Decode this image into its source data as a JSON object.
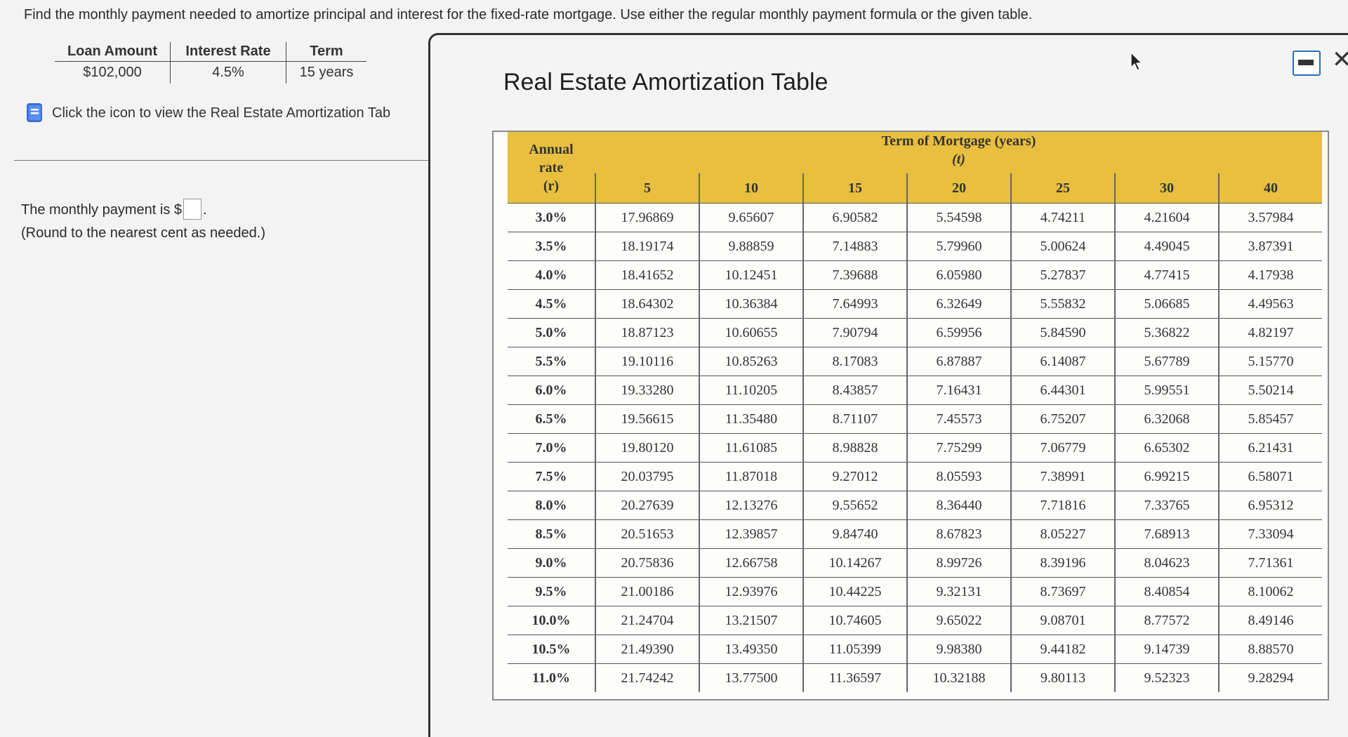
{
  "question": "Find the monthly payment needed to amortize principal and interest for the fixed-rate mortgage. Use either the regular monthly payment formula or the given table.",
  "given": {
    "headers": [
      "Loan Amount",
      "Interest Rate",
      "Term"
    ],
    "values": [
      "$102,000",
      "4.5%",
      "15 years"
    ]
  },
  "icon_link_text": "Click the icon to view the Real Estate Amortization Tab",
  "answer": {
    "prefix": "The monthly payment is $",
    "suffix": ".",
    "note": "(Round to the nearest cent as needed.)"
  },
  "popup": {
    "title": "Real Estate Amortization Table",
    "minimize_icon": "minimize-icon",
    "close_label": "✕"
  },
  "amortization": {
    "rate_header": [
      "Annual",
      "rate",
      "(r)"
    ],
    "term_header": "Term of Mortgage (years)",
    "term_symbol": "(t)",
    "terms": [
      "5",
      "10",
      "15",
      "20",
      "25",
      "30",
      "40"
    ],
    "rows": [
      {
        "rate": "3.0%",
        "values": [
          "17.96869",
          "9.65607",
          "6.90582",
          "5.54598",
          "4.74211",
          "4.21604",
          "3.57984"
        ]
      },
      {
        "rate": "3.5%",
        "values": [
          "18.19174",
          "9.88859",
          "7.14883",
          "5.79960",
          "5.00624",
          "4.49045",
          "3.87391"
        ]
      },
      {
        "rate": "4.0%",
        "values": [
          "18.41652",
          "10.12451",
          "7.39688",
          "6.05980",
          "5.27837",
          "4.77415",
          "4.17938"
        ]
      },
      {
        "rate": "4.5%",
        "values": [
          "18.64302",
          "10.36384",
          "7.64993",
          "6.32649",
          "5.55832",
          "5.06685",
          "4.49563"
        ]
      },
      {
        "rate": "5.0%",
        "values": [
          "18.87123",
          "10.60655",
          "7.90794",
          "6.59956",
          "5.84590",
          "5.36822",
          "4.82197"
        ]
      },
      {
        "rate": "5.5%",
        "values": [
          "19.10116",
          "10.85263",
          "8.17083",
          "6.87887",
          "6.14087",
          "5.67789",
          "5.15770"
        ]
      },
      {
        "rate": "6.0%",
        "values": [
          "19.33280",
          "11.10205",
          "8.43857",
          "7.16431",
          "6.44301",
          "5.99551",
          "5.50214"
        ]
      },
      {
        "rate": "6.5%",
        "values": [
          "19.56615",
          "11.35480",
          "8.71107",
          "7.45573",
          "6.75207",
          "6.32068",
          "5.85457"
        ]
      },
      {
        "rate": "7.0%",
        "values": [
          "19.80120",
          "11.61085",
          "8.98828",
          "7.75299",
          "7.06779",
          "6.65302",
          "6.21431"
        ]
      },
      {
        "rate": "7.5%",
        "values": [
          "20.03795",
          "11.87018",
          "9.27012",
          "8.05593",
          "7.38991",
          "6.99215",
          "6.58071"
        ]
      },
      {
        "rate": "8.0%",
        "values": [
          "20.27639",
          "12.13276",
          "9.55652",
          "8.36440",
          "7.71816",
          "7.33765",
          "6.95312"
        ]
      },
      {
        "rate": "8.5%",
        "values": [
          "20.51653",
          "12.39857",
          "9.84740",
          "8.67823",
          "8.05227",
          "7.68913",
          "7.33094"
        ]
      },
      {
        "rate": "9.0%",
        "values": [
          "20.75836",
          "12.66758",
          "10.14267",
          "8.99726",
          "8.39196",
          "8.04623",
          "7.71361"
        ]
      },
      {
        "rate": "9.5%",
        "values": [
          "21.00186",
          "12.93976",
          "10.44225",
          "9.32131",
          "8.73697",
          "8.40854",
          "8.10062"
        ]
      },
      {
        "rate": "10.0%",
        "values": [
          "21.24704",
          "13.21507",
          "10.74605",
          "9.65022",
          "9.08701",
          "8.77572",
          "8.49146"
        ]
      },
      {
        "rate": "10.5%",
        "values": [
          "21.49390",
          "13.49350",
          "11.05399",
          "9.98380",
          "9.44182",
          "9.14739",
          "8.88570"
        ]
      },
      {
        "rate": "11.0%",
        "values": [
          "21.74242",
          "13.77500",
          "11.36597",
          "10.32188",
          "9.80113",
          "9.52323",
          "9.28294"
        ]
      }
    ]
  }
}
